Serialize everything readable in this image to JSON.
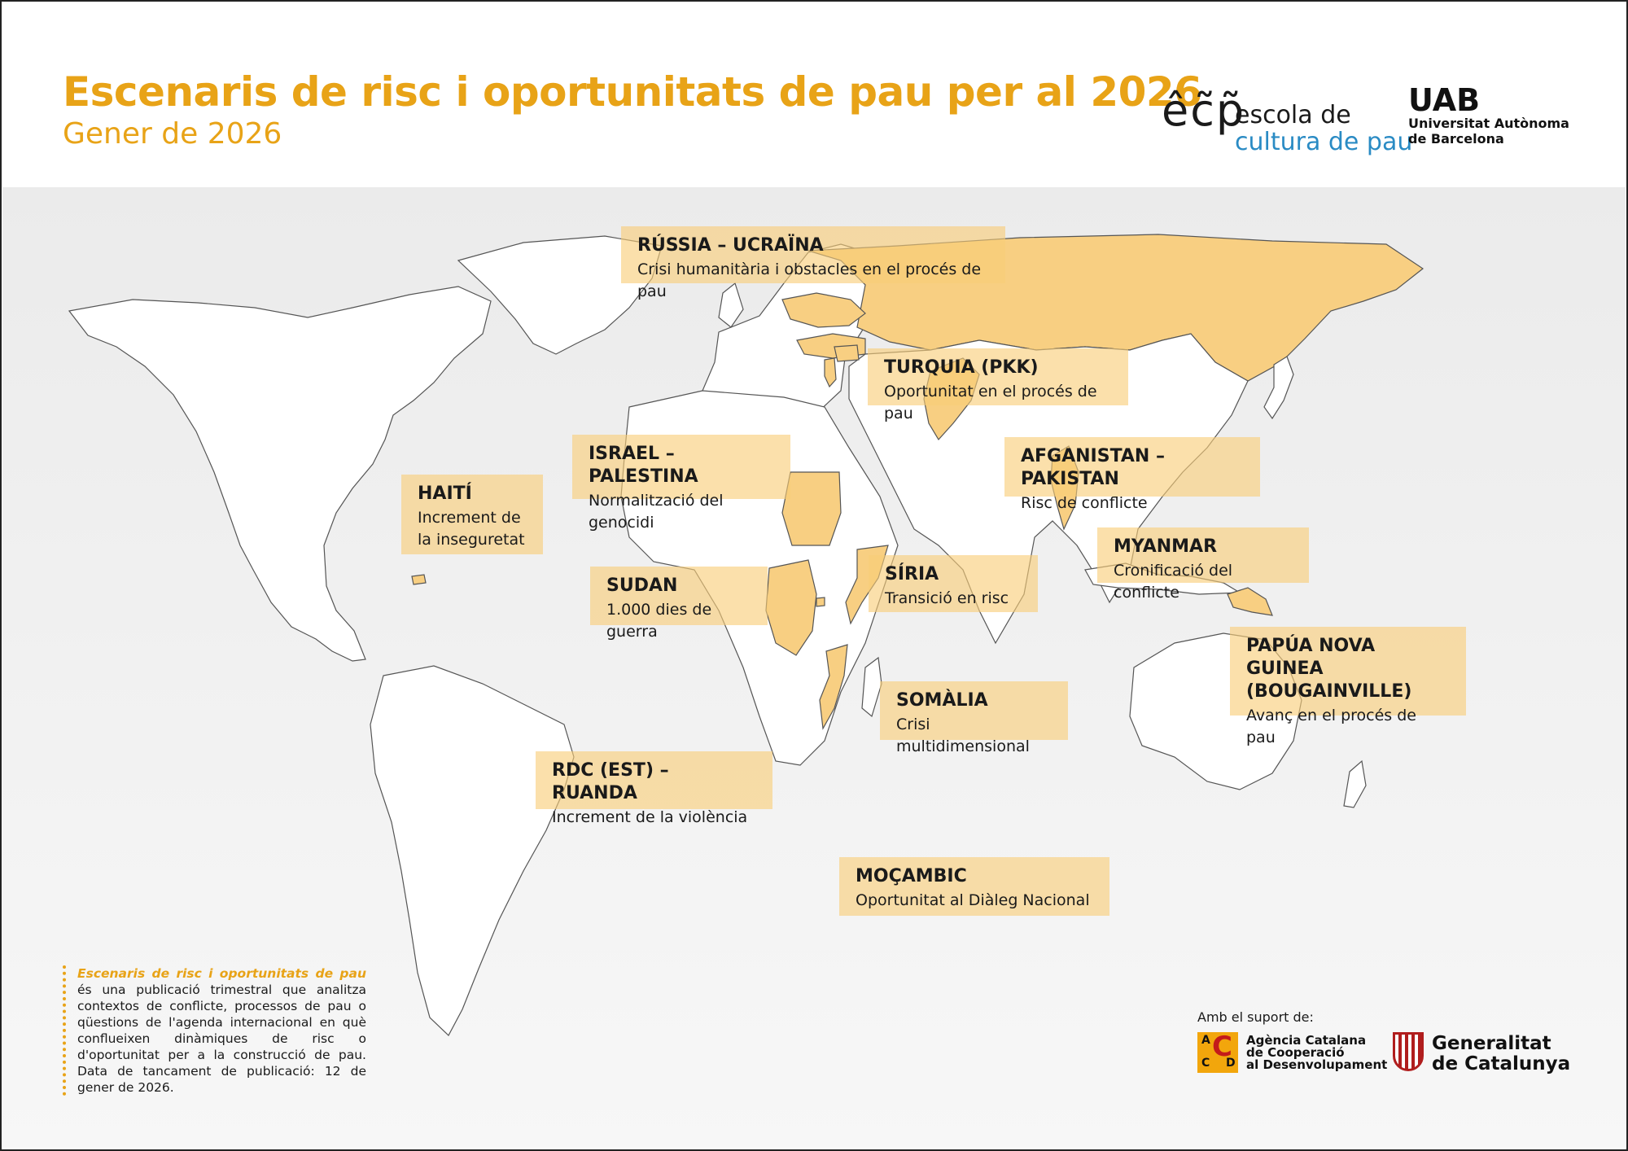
{
  "header": {
    "title": "Escenaris de risc i oportunitats de pau per al 2026",
    "subtitle": "Gener de 2026"
  },
  "logos": {
    "ecp": {
      "mark": "êc͂p̃",
      "line1": "escola de",
      "line2": "cultura de pau"
    },
    "uab": {
      "mark": "UAB",
      "line1": "Universitat Autònoma",
      "line2": "de Barcelona"
    }
  },
  "scenarios": [
    {
      "id": "russia-ucraina",
      "title": "RÚSSIA – UCRAÏNA",
      "desc": "Crisi humanitària i obstacles en el procés de pau"
    },
    {
      "id": "turquia",
      "title": "TURQUIA (PKK)",
      "desc": "Oportunitat en el procés de pau"
    },
    {
      "id": "israel-palestina",
      "title": "ISRAEL – PALESTINA",
      "desc": "Normalització del genocidi"
    },
    {
      "id": "afganistan-pakistan",
      "title": "AFGANISTAN – PAKISTAN",
      "desc": "Risc de conflicte"
    },
    {
      "id": "haiti",
      "title": "HAITÍ",
      "desc": "Increment de la inseguretat"
    },
    {
      "id": "myanmar",
      "title": "MYANMAR",
      "desc": "Cronificació del conflicte"
    },
    {
      "id": "sudan",
      "title": "SUDAN",
      "desc": "1.000 dies de guerra"
    },
    {
      "id": "siria",
      "title": "SÍRIA",
      "desc": "Transició en risc"
    },
    {
      "id": "papua",
      "title": "PAPÚA NOVA GUINEA (BOUGAINVILLE)",
      "desc": "Avanç en el procés de pau"
    },
    {
      "id": "somalia",
      "title": "SOMÀLIA",
      "desc": "Crisi multidimensional"
    },
    {
      "id": "rdc-ruanda",
      "title": "RDC (EST) – RUANDA",
      "desc": "Increment de la violència"
    },
    {
      "id": "mocambic",
      "title": "MOÇAMBIC",
      "desc": "Oportunitat al Diàleg Nacional"
    }
  ],
  "info": {
    "lead": "Escenaris de risc i oportunitats de pau",
    "text": " és una publicació trimestral que analitza contextos de conflicte, processos de pau o qüestions de l'agenda internacional en què conflueixen dinàmiques de risc o d'oportunitat per a la construcció de pau. Data de tancament de publicació: 12 de gener de 2026."
  },
  "support": {
    "label": "Amb el suport de:",
    "acd": {
      "letters": [
        "A",
        "C",
        "C",
        "D"
      ],
      "line1": "Agència Catalana",
      "line2": "de Cooperació",
      "line3": "al Desenvolupament"
    },
    "gen": {
      "line1": "Generalitat",
      "line2": "de Catalunya"
    }
  },
  "colors": {
    "accent": "#e8a317",
    "highlight": "#f8cf82",
    "label_bg": "#f8cd78",
    "ecp_blue": "#2a8bc4",
    "gen_red": "#b01d1d"
  }
}
